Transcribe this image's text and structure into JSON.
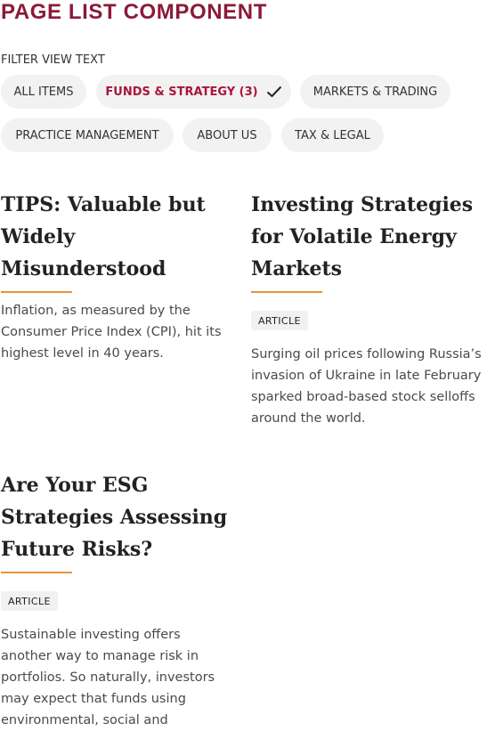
{
  "page": {
    "title": "PAGE LIST COMPONENT"
  },
  "filter": {
    "label": "FILTER VIEW TEXT",
    "chips": [
      {
        "label": "ALL ITEMS",
        "selected": false
      },
      {
        "label": "FUNDS & STRATEGY (3)",
        "selected": true,
        "icon": "check-icon"
      },
      {
        "label": "MARKETS & TRADING",
        "selected": false
      },
      {
        "label": "PRACTICE MANAGEMENT",
        "selected": false
      },
      {
        "label": "ABOUT US",
        "selected": false
      },
      {
        "label": "TAX & LEGAL",
        "selected": false
      }
    ]
  },
  "cards": [
    {
      "title": "TIPS: Valuable but Widely Misunderstood",
      "badge": null,
      "description": "Inflation, as measured by the Consumer Price Index (CPI), hit its highest level in 40 years."
    },
    {
      "title": "Investing Strategies for Volatile Energy Markets",
      "badge": "ARTICLE",
      "description": "Surging oil prices following Russia’s invasion of Ukraine in late February sparked broad-based stock selloffs around the world."
    },
    {
      "title": "Are Your ESG Strategies Assessing Future Risks?",
      "badge": "ARTICLE",
      "description": "Sustainable investing offers another way to manage risk in portfolios. So naturally, investors may expect that funds using environmental, social and"
    }
  ],
  "colors": {
    "brand": "#8b1a3a",
    "selected_chip_text": "#a8163d",
    "accent_rule": "#e8923a",
    "chip_background": "#f2f2f2"
  }
}
